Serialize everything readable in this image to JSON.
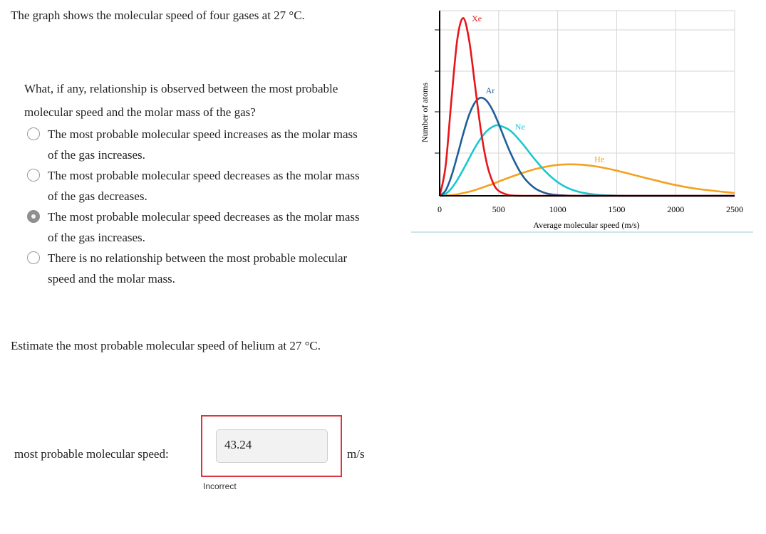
{
  "question": {
    "intro": "The graph shows the molecular speed of four gases at 27 °C.",
    "prompt": "What, if any, relationship is observed between the most probable molecular speed and the molar mass of the gas?",
    "options": [
      "The most probable molecular speed increases as the molar mass of the gas increases.",
      "The most probable molecular speed decreases as the molar mass of the gas decreases.",
      "The most probable molecular speed decreases as the molar mass of the gas increases.",
      "There is no relationship between the most probable molecular speed and the molar mass."
    ],
    "selected": 2
  },
  "chart_data": {
    "type": "line",
    "xlabel": "Average molecular speed (m/s)",
    "ylabel": "Number of atoms",
    "x": [
      0,
      50,
      100,
      150,
      200,
      250,
      300,
      350,
      400,
      450,
      500,
      600,
      700,
      800,
      900,
      1000,
      1100,
      1200,
      1300,
      1400,
      1500,
      1600,
      1800,
      2000,
      2200,
      2500
    ],
    "series": [
      {
        "name": "Xe",
        "color": "#e8151b",
        "values": [
          0,
          15.8,
          52.0,
          84.7,
          96.0,
          84.0,
          59.5,
          35.1,
          17.4,
          7.4,
          2.7,
          0.2,
          0,
          0,
          0,
          0,
          0,
          0,
          0,
          0,
          0,
          0,
          0,
          0,
          0,
          0
        ]
      },
      {
        "name": "Ar",
        "color": "#1f5f99",
        "values": [
          0,
          2.8,
          10.7,
          21.7,
          33.5,
          43.8,
          50.5,
          53.0,
          51.2,
          46.1,
          38.9,
          23.2,
          11.1,
          4.4,
          1.4,
          0.4,
          0.1,
          0,
          0,
          0,
          0,
          0,
          0,
          0,
          0,
          0
        ]
      },
      {
        "name": "Ne",
        "color": "#1cc7cf",
        "values": [
          0,
          1.0,
          4.0,
          8.6,
          14.2,
          20.2,
          26.1,
          31.1,
          35.0,
          37.3,
          38.0,
          35.1,
          28.3,
          20.2,
          12.9,
          7.4,
          3.8,
          1.8,
          0.8,
          0.3,
          0.1,
          0,
          0,
          0,
          0,
          0
        ]
      },
      {
        "name": "He",
        "color": "#f5a01e",
        "values": [
          0,
          0.1,
          0.4,
          0.8,
          1.5,
          2.2,
          3.1,
          4.2,
          5.3,
          6.4,
          7.7,
          10.1,
          12.3,
          14.3,
          15.7,
          16.7,
          17.0,
          16.8,
          16.1,
          15.0,
          13.6,
          12.0,
          8.8,
          5.8,
          3.6,
          1.5
        ]
      }
    ],
    "xlim": [
      0,
      2500
    ],
    "xticks": [
      0,
      500,
      1000,
      1500,
      2000,
      2500
    ],
    "ylim": [
      0,
      100
    ],
    "grid": true
  },
  "estimate": {
    "prompt": "Estimate the most probable molecular speed of helium at 27 °C.",
    "label": "most probable molecular speed:",
    "answer": "43.24",
    "unit": "m/s",
    "feedback": "Incorrect"
  }
}
